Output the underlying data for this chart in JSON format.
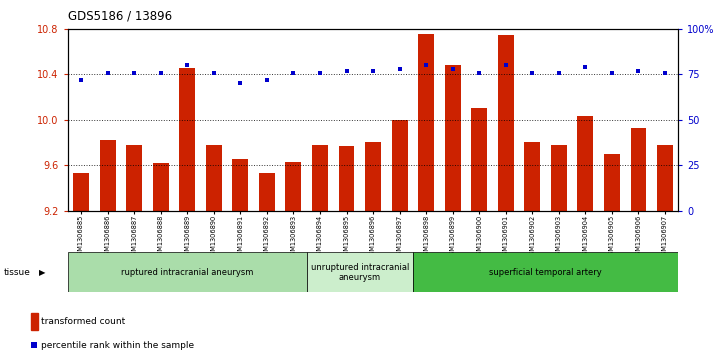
{
  "title": "GDS5186 / 13896",
  "samples": [
    "GSM1306885",
    "GSM1306886",
    "GSM1306887",
    "GSM1306888",
    "GSM1306889",
    "GSM1306890",
    "GSM1306891",
    "GSM1306892",
    "GSM1306893",
    "GSM1306894",
    "GSM1306895",
    "GSM1306896",
    "GSM1306897",
    "GSM1306898",
    "GSM1306899",
    "GSM1306900",
    "GSM1306901",
    "GSM1306902",
    "GSM1306903",
    "GSM1306904",
    "GSM1306905",
    "GSM1306906",
    "GSM1306907"
  ],
  "transformed_count": [
    9.53,
    9.82,
    9.78,
    9.62,
    10.46,
    9.78,
    9.65,
    9.53,
    9.63,
    9.78,
    9.77,
    9.8,
    10.0,
    10.76,
    10.48,
    10.1,
    10.75,
    9.8,
    9.78,
    10.03,
    9.7,
    9.93,
    9.78
  ],
  "percentile_rank": [
    72,
    76,
    76,
    76,
    80,
    76,
    70,
    72,
    76,
    76,
    77,
    77,
    78,
    80,
    78,
    76,
    80,
    76,
    76,
    79,
    76,
    77,
    76
  ],
  "ylim_left": [
    9.2,
    10.8
  ],
  "ylim_right": [
    0,
    100
  ],
  "yticks_left": [
    9.2,
    9.6,
    10.0,
    10.4,
    10.8
  ],
  "yticks_right": [
    0,
    25,
    50,
    75,
    100
  ],
  "bar_color": "#cc2200",
  "dot_color": "#0000cc",
  "group_labels": [
    "ruptured intracranial aneurysm",
    "unruptured intracranial\naneurysm",
    "superficial temporal artery"
  ],
  "group_starts": [
    0,
    9,
    13
  ],
  "group_ends": [
    8,
    12,
    22
  ],
  "group_colors": [
    "#aaddaa",
    "#cceecc",
    "#44bb44"
  ],
  "tissue_label": "tissue",
  "legend_bar_label": "transformed count",
  "legend_dot_label": "percentile rank within the sample"
}
